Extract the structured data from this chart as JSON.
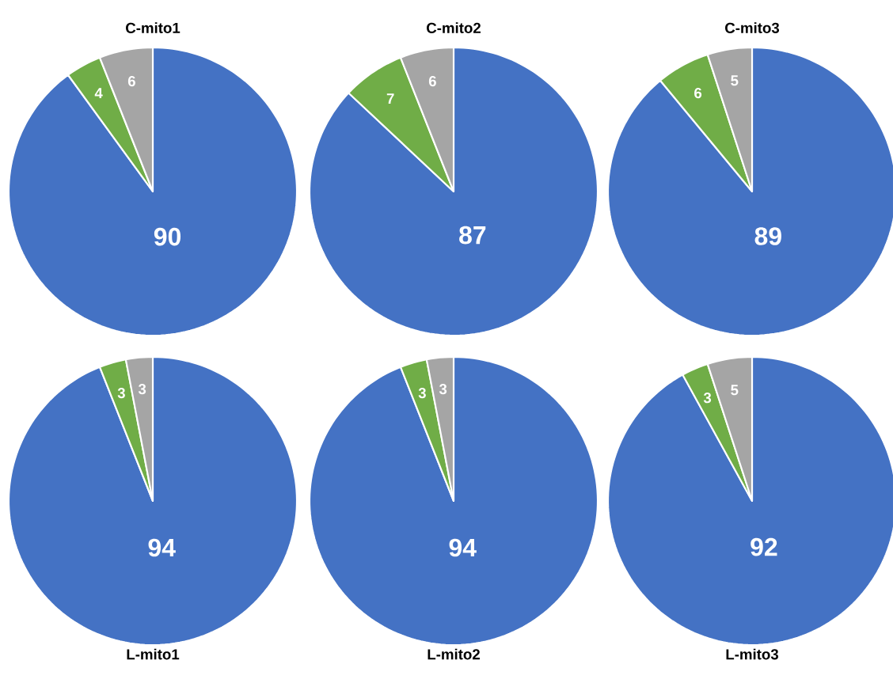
{
  "chart_data": [
    {
      "type": "pie",
      "title": "C-mito1",
      "categories": [
        null,
        null,
        null
      ],
      "values": [
        90,
        4,
        6
      ],
      "colors": [
        "#4472c4",
        "#70ad47",
        "#a5a5a5"
      ],
      "data_labels": true
    },
    {
      "type": "pie",
      "title": "C-mito2",
      "categories": [
        null,
        null,
        null
      ],
      "values": [
        87,
        7,
        6
      ],
      "colors": [
        "#4472c4",
        "#70ad47",
        "#a5a5a5"
      ],
      "data_labels": true
    },
    {
      "type": "pie",
      "title": "C-mito3",
      "categories": [
        null,
        null,
        null
      ],
      "values": [
        89,
        6,
        5
      ],
      "colors": [
        "#4472c4",
        "#70ad47",
        "#a5a5a5"
      ],
      "data_labels": true
    },
    {
      "type": "pie",
      "title": "L-mito1",
      "categories": [
        null,
        null,
        null
      ],
      "values": [
        94,
        3,
        3
      ],
      "colors": [
        "#4472c4",
        "#70ad47",
        "#a5a5a5"
      ],
      "data_labels": true
    },
    {
      "type": "pie",
      "title": "L-mito2",
      "categories": [
        null,
        null,
        null
      ],
      "values": [
        94,
        3,
        3
      ],
      "colors": [
        "#4472c4",
        "#70ad47",
        "#a5a5a5"
      ],
      "data_labels": true
    },
    {
      "type": "pie",
      "title": "L-mito3",
      "categories": [
        null,
        null,
        null
      ],
      "values": [
        92,
        3,
        5
      ],
      "colors": [
        "#4472c4",
        "#70ad47",
        "#a5a5a5"
      ],
      "data_labels": true
    }
  ]
}
